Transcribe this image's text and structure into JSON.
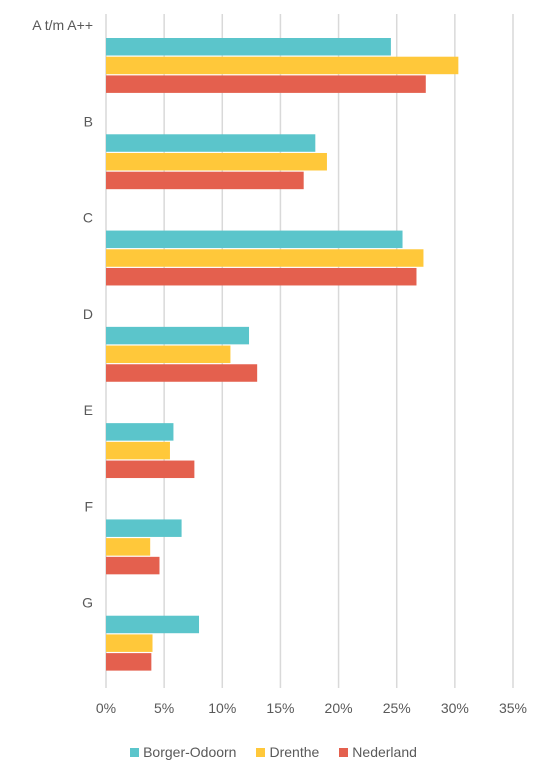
{
  "chart_data": {
    "type": "bar",
    "orientation": "horizontal",
    "categories": [
      "A t/m A++",
      "B",
      "C",
      "D",
      "E",
      "F",
      "G"
    ],
    "series": [
      {
        "name": "Borger-Odoorn",
        "color": "#5BC5CB",
        "values": [
          24.5,
          18.0,
          25.5,
          12.3,
          5.8,
          6.5,
          8.0
        ]
      },
      {
        "name": "Drenthe",
        "color": "#FFC83A",
        "values": [
          30.3,
          19.0,
          27.3,
          10.7,
          5.5,
          3.8,
          4.0
        ]
      },
      {
        "name": "Nederland",
        "color": "#E4604E",
        "values": [
          27.5,
          17.0,
          26.7,
          13.0,
          7.6,
          4.6,
          3.9
        ]
      }
    ],
    "xlim": [
      0,
      35
    ],
    "xticks": [
      "0%",
      "5%",
      "10%",
      "15%",
      "20%",
      "25%",
      "30%",
      "35%"
    ],
    "grid": true,
    "legend_position": "bottom"
  }
}
